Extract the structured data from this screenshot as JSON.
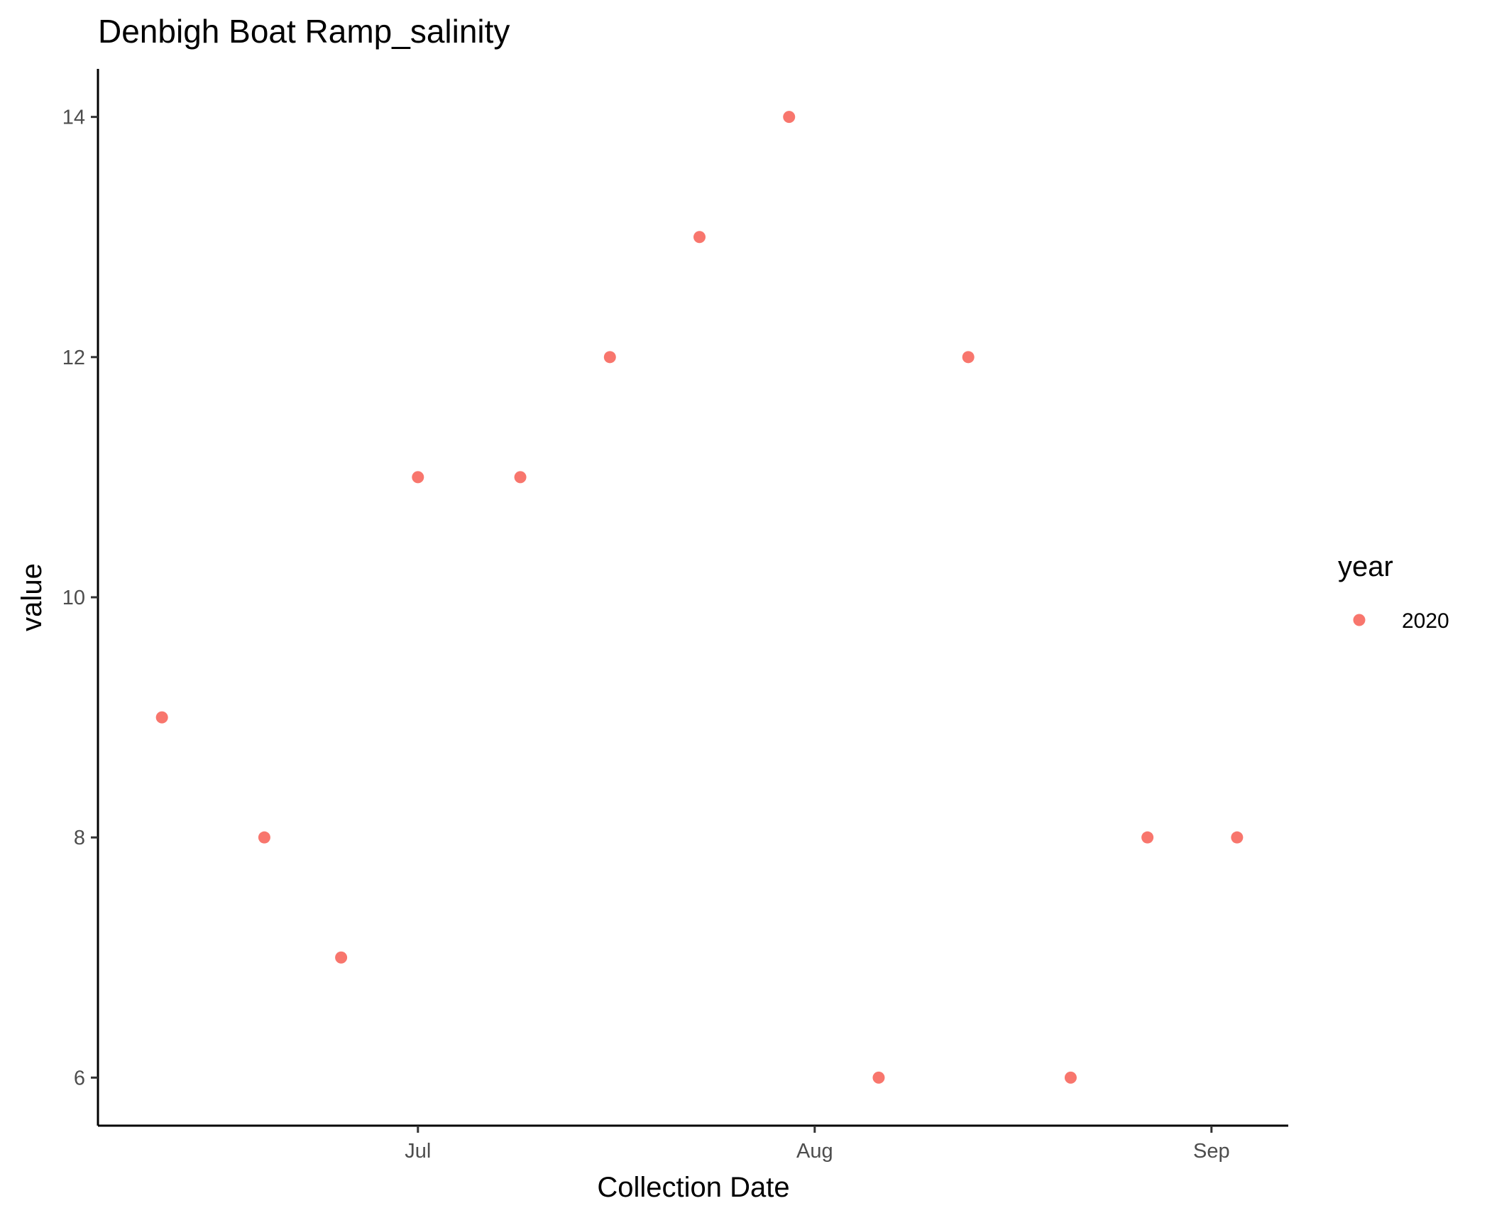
{
  "chart_data": {
    "type": "scatter",
    "title": "Denbigh Boat Ramp_salinity",
    "xlabel": "Collection Date",
    "ylabel": "value",
    "x_ticks": [
      {
        "date": "2020-07-01",
        "label": "Jul"
      },
      {
        "date": "2020-08-01",
        "label": "Aug"
      },
      {
        "date": "2020-09-01",
        "label": "Sep"
      }
    ],
    "y_ticks": [
      6,
      8,
      10,
      12,
      14
    ],
    "xlim": [
      "2020-06-06",
      "2020-09-07"
    ],
    "ylim": [
      5.6,
      14.4
    ],
    "grid": false,
    "legend": {
      "title": "year",
      "position": "right"
    },
    "series": [
      {
        "name": "2020",
        "color": "#F8766D",
        "points": [
          {
            "x": "2020-06-11",
            "y": 9
          },
          {
            "x": "2020-06-19",
            "y": 8
          },
          {
            "x": "2020-06-25",
            "y": 7
          },
          {
            "x": "2020-07-01",
            "y": 11
          },
          {
            "x": "2020-07-09",
            "y": 11
          },
          {
            "x": "2020-07-16",
            "y": 12
          },
          {
            "x": "2020-07-23",
            "y": 13
          },
          {
            "x": "2020-07-30",
            "y": 14
          },
          {
            "x": "2020-08-06",
            "y": 6
          },
          {
            "x": "2020-08-13",
            "y": 12
          },
          {
            "x": "2020-08-21",
            "y": 6
          },
          {
            "x": "2020-08-27",
            "y": 8
          },
          {
            "x": "2020-09-03",
            "y": 8
          }
        ]
      }
    ]
  }
}
